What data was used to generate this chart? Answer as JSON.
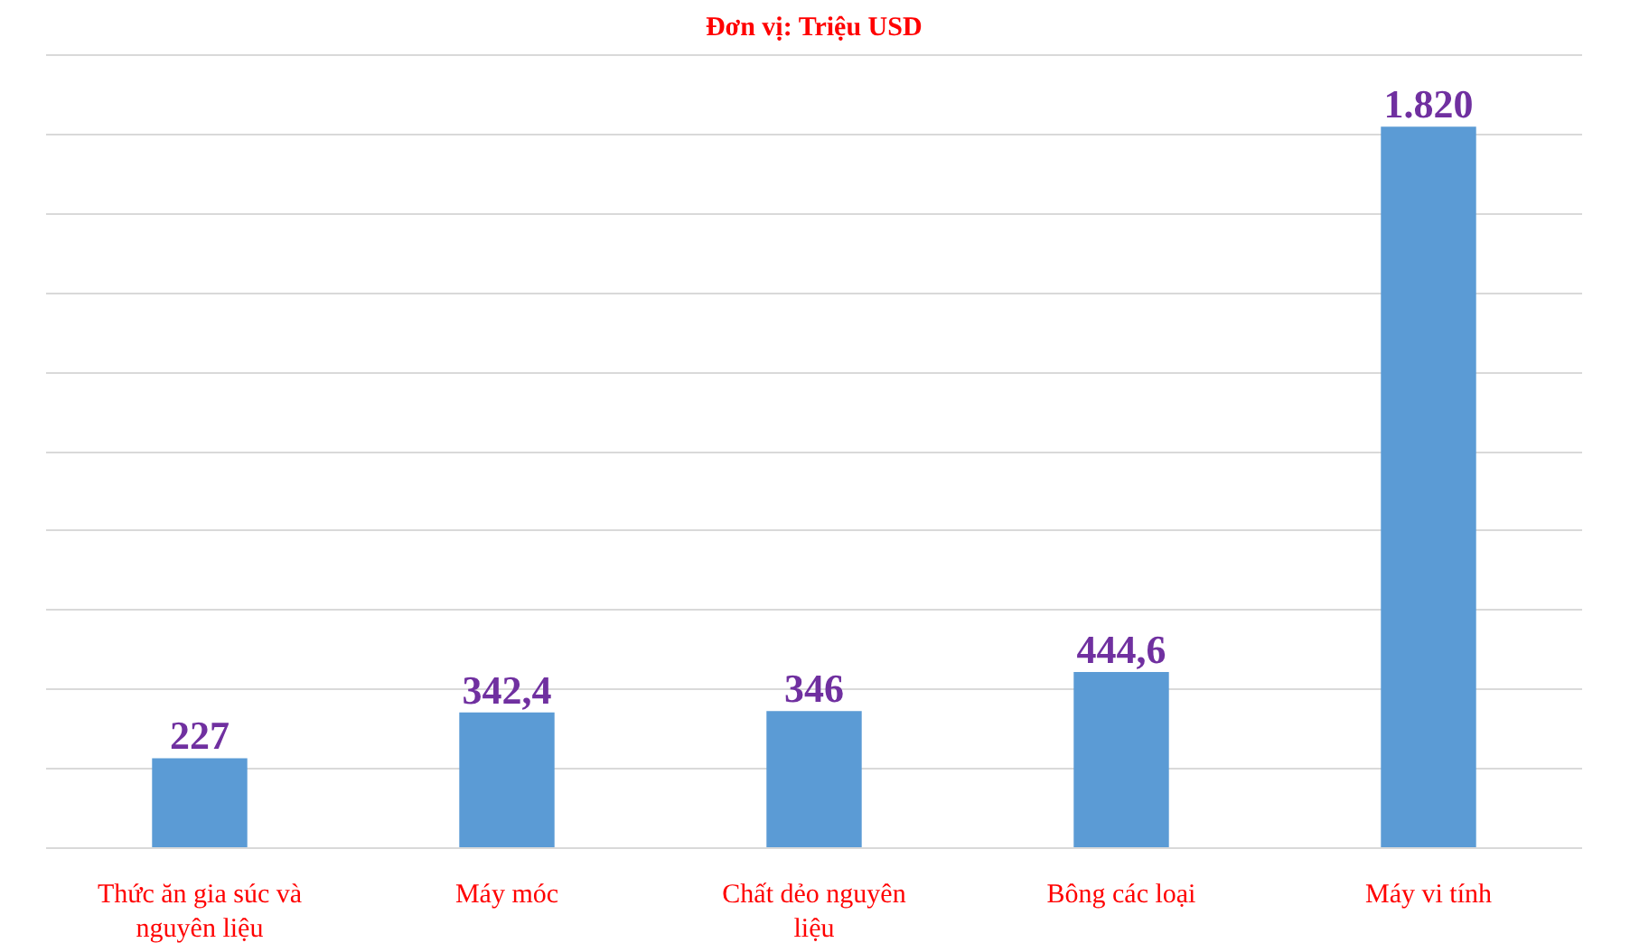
{
  "chart_data": {
    "type": "bar",
    "title": "Đơn vị: Triệu USD",
    "categories": [
      "Thức ăn gia súc và nguyên liệu",
      "Máy móc",
      "Chất dẻo nguyên liệu",
      "Bông các loại",
      "Máy vi tính"
    ],
    "values": [
      227,
      342.4,
      346,
      444.6,
      1820
    ],
    "color": "#5b9bd5",
    "value_labels": [
      "227",
      "342,4",
      "346",
      "444,6",
      "1.820"
    ],
    "yticks": [
      {
        "value": 0,
        "label": null
      },
      {
        "value": 200,
        "label": null
      },
      {
        "value": 400,
        "label": null
      },
      {
        "value": 600,
        "label": null
      },
      {
        "value": 800,
        "label": null
      },
      {
        "value": 1000,
        "label": null
      },
      {
        "value": 1200,
        "label": null
      },
      {
        "value": 1400,
        "label": null
      },
      {
        "value": 1600,
        "label": null
      },
      {
        "value": 1800,
        "label": null
      },
      {
        "value": 2000,
        "label": null
      }
    ],
    "grid": "y",
    "tick_labels": "x"
  }
}
